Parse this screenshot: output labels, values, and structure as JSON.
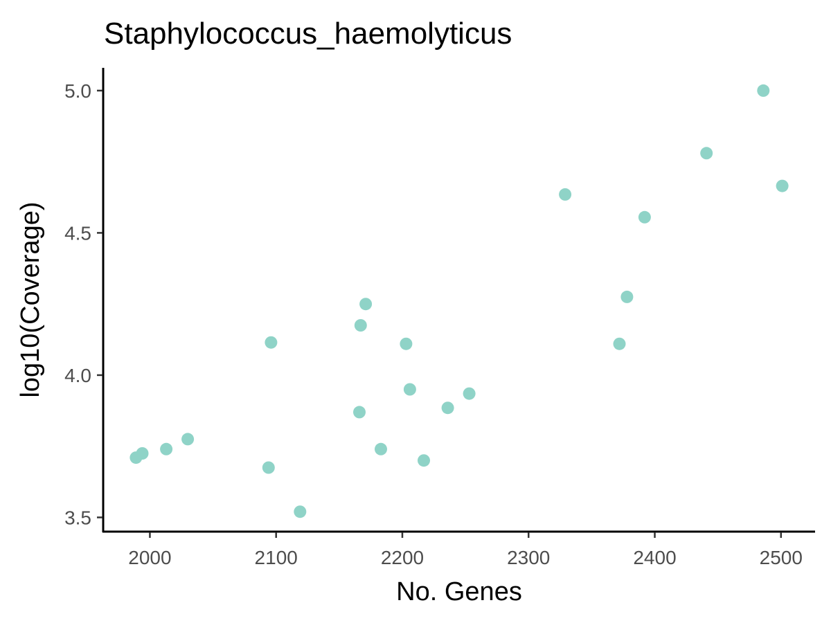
{
  "chart_data": {
    "type": "scatter",
    "title": "Staphylococcus_haemolyticus",
    "xlabel": "No. Genes",
    "ylabel": "log10(Coverage)",
    "xlim": [
      1963,
      2527
    ],
    "ylim": [
      3.45,
      5.08
    ],
    "x_ticks": [
      2000,
      2100,
      2200,
      2300,
      2400,
      2500
    ],
    "y_ticks": [
      3.5,
      4.0,
      4.5,
      5.0
    ],
    "x_tick_labels": [
      "2000",
      "2100",
      "2200",
      "2300",
      "2400",
      "2500"
    ],
    "y_tick_labels": [
      "3.5",
      "4.0",
      "4.5",
      "5.0"
    ],
    "grid": false,
    "legend": "none",
    "point_color": "#8fd3c7",
    "points": [
      {
        "x": 1989,
        "y": 3.71
      },
      {
        "x": 1994,
        "y": 3.725
      },
      {
        "x": 2013,
        "y": 3.74
      },
      {
        "x": 2030,
        "y": 3.775
      },
      {
        "x": 2094,
        "y": 3.675
      },
      {
        "x": 2096,
        "y": 4.115
      },
      {
        "x": 2119,
        "y": 3.52
      },
      {
        "x": 2166,
        "y": 3.87
      },
      {
        "x": 2167,
        "y": 4.175
      },
      {
        "x": 2171,
        "y": 4.25
      },
      {
        "x": 2183,
        "y": 3.74
      },
      {
        "x": 2203,
        "y": 4.11
      },
      {
        "x": 2206,
        "y": 3.95
      },
      {
        "x": 2217,
        "y": 3.7
      },
      {
        "x": 2236,
        "y": 3.885
      },
      {
        "x": 2253,
        "y": 3.935
      },
      {
        "x": 2329,
        "y": 4.635
      },
      {
        "x": 2372,
        "y": 4.11
      },
      {
        "x": 2378,
        "y": 4.275
      },
      {
        "x": 2392,
        "y": 4.555
      },
      {
        "x": 2441,
        "y": 4.78
      },
      {
        "x": 2486,
        "y": 5.0
      },
      {
        "x": 2501,
        "y": 4.665
      }
    ]
  }
}
